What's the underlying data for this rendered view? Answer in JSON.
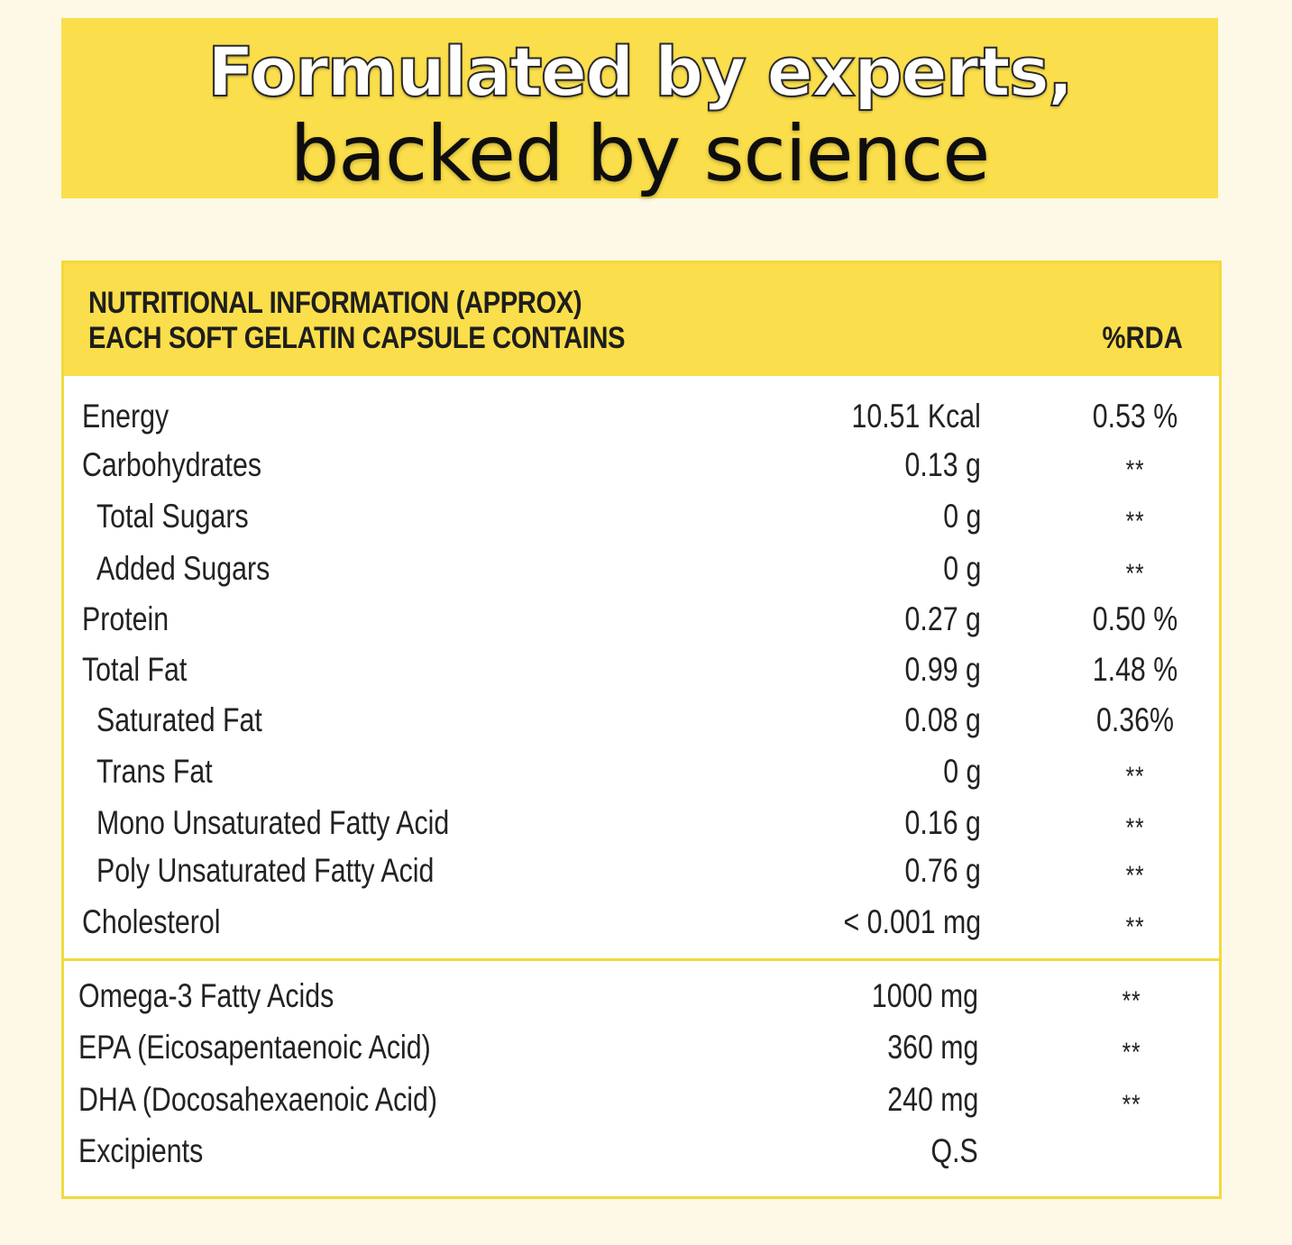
{
  "banner": {
    "line1": "Formulated by experts,",
    "line2": "backed by science"
  },
  "panel": {
    "header_line1": "NUTRITIONAL INFORMATION (APPROX)",
    "header_line2": "EACH SOFT GELATIN CAPSULE CONTAINS",
    "rda_header": "%RDA",
    "nutrients": [
      {
        "label": "Energy",
        "value": "10.51 Kcal",
        "rda": "0.53 %"
      },
      {
        "label": "Carbohydrates",
        "value": "0.13 g",
        "rda": "**"
      },
      {
        "label": "Total Sugars",
        "value": "0 g",
        "rda": "**"
      },
      {
        "label": "Added Sugars",
        "value": "0 g",
        "rda": "**"
      },
      {
        "label": "Protein",
        "value": "0.27 g",
        "rda": "0.50 %"
      },
      {
        "label": "Total Fat",
        "value": "0.99 g",
        "rda": "1.48 %"
      },
      {
        "label": "Saturated Fat",
        "value": "0.08 g",
        "rda": "0.36%"
      },
      {
        "label": "Trans Fat",
        "value": "0 g",
        "rda": "**"
      },
      {
        "label": "Mono Unsaturated Fatty Acid",
        "value": "0.16 g",
        "rda": "**"
      },
      {
        "label": "Poly Unsaturated Fatty Acid",
        "value": "0.76 g",
        "rda": "**"
      },
      {
        "label": "Cholesterol",
        "value": "< 0.001 mg",
        "rda": "**"
      }
    ],
    "actives": [
      {
        "label": "Omega-3 Fatty Acids",
        "value": "1000 mg",
        "rda": "**"
      },
      {
        "label": "EPA (Eicosapentaenoic Acid)",
        "value": "360 mg",
        "rda": "**"
      },
      {
        "label": "DHA (Docosahexaenoic Acid)",
        "value": "240 mg",
        "rda": "**"
      },
      {
        "label": "Excipients",
        "value": "Q.S",
        "rda": ""
      }
    ]
  }
}
